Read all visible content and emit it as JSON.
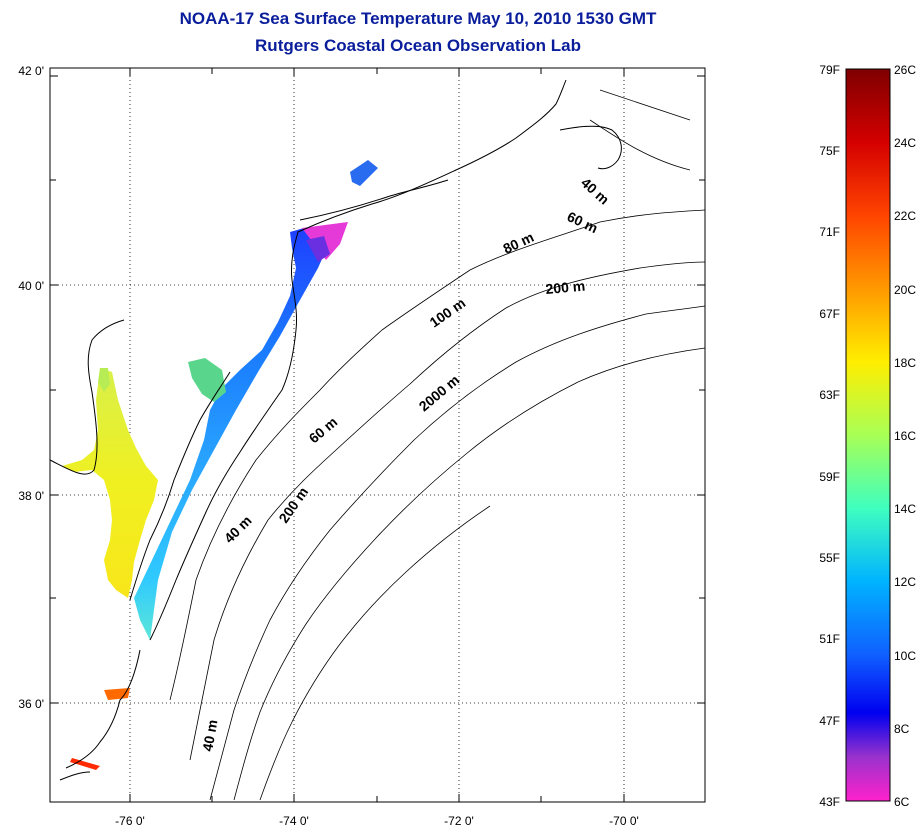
{
  "title": {
    "line1": "NOAA-17 Sea Surface Temperature May 10, 2010 1530 GMT",
    "line2": "Rutgers Coastal Ocean Observation Lab"
  },
  "map": {
    "lat_labels": [
      "42 0'",
      "40 0'",
      "38 0'",
      "36 0'"
    ],
    "lon_labels": [
      "-76 0'",
      "-74 0'",
      "-72 0'",
      "-70 0'"
    ],
    "grid": "dotted",
    "isobath_labels": [
      "40 m",
      "60 m",
      "80 m",
      "200 m",
      "100 m",
      "2000 m",
      "60 m",
      "40 m",
      "200 m",
      "40 m"
    ]
  },
  "colorbar": {
    "fahrenheit_labels": [
      "79F",
      "75F",
      "71F",
      "67F",
      "63F",
      "59F",
      "55F",
      "51F",
      "47F",
      "43F"
    ],
    "celsius_labels": [
      "26C",
      "24C",
      "22C",
      "20C",
      "18C",
      "16C",
      "14C",
      "12C",
      "10C",
      "8C",
      "6C"
    ],
    "colors": [
      "#7f0000",
      "#d40000",
      "#ff4400",
      "#ff9900",
      "#ffee00",
      "#a8ff55",
      "#3fffbf",
      "#00b3ff",
      "#1060ff",
      "#0000f0",
      "#9932cc",
      "#ff22cc"
    ]
  }
}
